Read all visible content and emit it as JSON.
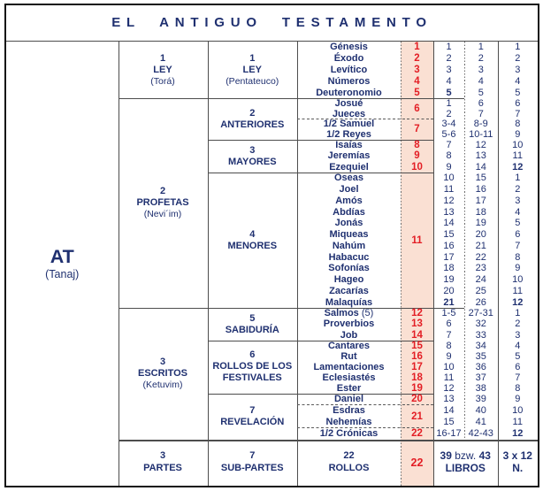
{
  "title": "EL  ANTIGUO  TESTAMENTO",
  "colors": {
    "navy": "#1f3070",
    "red": "#e31e25",
    "pink": "#fae0d3",
    "grid": "#4d4d4d",
    "border": "#141414"
  },
  "root": {
    "abbr": "AT",
    "sub": "(Tanaj)"
  },
  "parts": [
    {
      "num": "1",
      "name": "LEY",
      "sub": "(Torá)",
      "subparts": [
        {
          "num": "1",
          "name": "LEY",
          "sub": "(Pentateuco)",
          "groups": [
            {
              "scroll": "1",
              "books": [
                {
                  "name": "Génesis",
                  "n1": "1",
                  "n2": "1",
                  "n3": "1"
                }
              ]
            },
            {
              "scroll": "2",
              "books": [
                {
                  "name": "Éxodo",
                  "n1": "2",
                  "n2": "2",
                  "n3": "2"
                }
              ]
            },
            {
              "scroll": "3",
              "books": [
                {
                  "name": "Levítico",
                  "n1": "3",
                  "n2": "3",
                  "n3": "3"
                }
              ]
            },
            {
              "scroll": "4",
              "books": [
                {
                  "name": "Números",
                  "n1": "4",
                  "n2": "4",
                  "n3": "4"
                }
              ]
            },
            {
              "scroll": "5",
              "books": [
                {
                  "name": "Deuteronomio",
                  "n1": "5",
                  "n1b": true,
                  "n2": "5",
                  "n3": "5"
                }
              ]
            }
          ]
        }
      ]
    },
    {
      "num": "2",
      "name": "PROFETAS",
      "sub": "(Nevi´im)",
      "subparts": [
        {
          "num": "2",
          "name": "ANTERIORES",
          "groups": [
            {
              "scroll": "6",
              "books": [
                {
                  "name": "Josué",
                  "n1": "1",
                  "n2": "6",
                  "n3": "6"
                },
                {
                  "name": "Jueces",
                  "n1": "2",
                  "n2": "7",
                  "n3": "7"
                }
              ]
            },
            {
              "scroll": "7",
              "dash_before": true,
              "books": [
                {
                  "name": "1/2 Samuel",
                  "n1": "3-4",
                  "n2": "8-9",
                  "n3": "8"
                },
                {
                  "name": "1/2 Reyes",
                  "n1": "5-6",
                  "n2": "10-11",
                  "n3": "9"
                }
              ]
            }
          ]
        },
        {
          "num": "3",
          "name": "MAYORES",
          "groups": [
            {
              "scroll": "8",
              "books": [
                {
                  "name": "Isaías",
                  "n1": "7",
                  "n2": "12",
                  "n3": "10"
                }
              ]
            },
            {
              "scroll": "9",
              "books": [
                {
                  "name": "Jeremías",
                  "n1": "8",
                  "n2": "13",
                  "n3": "11"
                }
              ]
            },
            {
              "scroll": "10",
              "books": [
                {
                  "name": "Ezequiel",
                  "n1": "9",
                  "n2": "14",
                  "n3": "12",
                  "n3b": true
                }
              ]
            }
          ]
        },
        {
          "num": "4",
          "name": "MENORES",
          "groups": [
            {
              "scroll": "11",
              "books": [
                {
                  "name": "Oseas",
                  "n1": "10",
                  "n2": "15",
                  "n3": "1"
                },
                {
                  "name": "Joel",
                  "n1": "11",
                  "n2": "16",
                  "n3": "2"
                },
                {
                  "name": "Amós",
                  "n1": "12",
                  "n2": "17",
                  "n3": "3"
                },
                {
                  "name": "Abdías",
                  "n1": "13",
                  "n2": "18",
                  "n3": "4"
                },
                {
                  "name": "Jonás",
                  "n1": "14",
                  "n2": "19",
                  "n3": "5"
                },
                {
                  "name": "Miqueas",
                  "n1": "15",
                  "n2": "20",
                  "n3": "6"
                },
                {
                  "name": "Nahúm",
                  "n1": "16",
                  "n2": "21",
                  "n3": "7"
                },
                {
                  "name": "Habacuc",
                  "n1": "17",
                  "n2": "22",
                  "n3": "8"
                },
                {
                  "name": "Sofonías",
                  "n1": "18",
                  "n2": "23",
                  "n3": "9"
                },
                {
                  "name": "Hageo",
                  "n1": "19",
                  "n2": "24",
                  "n3": "10"
                },
                {
                  "name": "Zacarías",
                  "n1": "20",
                  "n2": "25",
                  "n3": "11"
                },
                {
                  "name": "Malaquías",
                  "n1": "21",
                  "n1b": true,
                  "n2": "26",
                  "n3": "12",
                  "n3b": true
                }
              ]
            }
          ]
        }
      ]
    },
    {
      "num": "3",
      "name": "ESCRITOS",
      "sub": "(Ketuvim)",
      "subparts": [
        {
          "num": "5",
          "name": "SABIDURÍA",
          "groups": [
            {
              "scroll": "12",
              "books": [
                {
                  "name": "Salmos",
                  "note": "(5)",
                  "n1": "1-5",
                  "n2": "27-31",
                  "n3": "1"
                }
              ]
            },
            {
              "scroll": "13",
              "books": [
                {
                  "name": "Proverbios",
                  "n1": "6",
                  "n2": "32",
                  "n3": "2"
                }
              ]
            },
            {
              "scroll": "14",
              "books": [
                {
                  "name": "Job",
                  "n1": "7",
                  "n2": "33",
                  "n3": "3"
                }
              ]
            }
          ]
        },
        {
          "num": "6",
          "name": "ROLLOS DE LOS|FESTIVALES",
          "groups": [
            {
              "scroll": "15",
              "books": [
                {
                  "name": "Cantares",
                  "n1": "8",
                  "n2": "34",
                  "n3": "4"
                }
              ]
            },
            {
              "scroll": "16",
              "books": [
                {
                  "name": "Rut",
                  "n1": "9",
                  "n2": "35",
                  "n3": "5"
                }
              ]
            },
            {
              "scroll": "17",
              "books": [
                {
                  "name": "Lamentaciones",
                  "n1": "10",
                  "n2": "36",
                  "n3": "6"
                }
              ]
            },
            {
              "scroll": "18",
              "books": [
                {
                  "name": "Eclesiastés",
                  "n1": "11",
                  "n2": "37",
                  "n3": "7"
                }
              ]
            },
            {
              "scroll": "19",
              "books": [
                {
                  "name": "Ester",
                  "n1": "12",
                  "n2": "38",
                  "n3": "8"
                }
              ]
            }
          ]
        },
        {
          "num": "7",
          "name": "REVELACIÓN",
          "groups": [
            {
              "scroll": "20",
              "books": [
                {
                  "name": "Daniel",
                  "n1": "13",
                  "n2": "39",
                  "n3": "9"
                }
              ]
            },
            {
              "scroll": "21",
              "dash_before": true,
              "books": [
                {
                  "name": "Esdras",
                  "n1": "14",
                  "n2": "40",
                  "n3": "10"
                },
                {
                  "name": "Nehemías",
                  "n1": "15",
                  "n2": "41",
                  "n3": "11"
                }
              ]
            },
            {
              "scroll": "22",
              "dash_before": true,
              "books": [
                {
                  "name": "1/2 Crónicas",
                  "n1": "16-17",
                  "n2": "42-43",
                  "n3": "12",
                  "n3b": true
                }
              ]
            }
          ]
        }
      ]
    }
  ],
  "summary": {
    "parts_num": "3",
    "parts_label": "PARTES",
    "subparts_num": "7",
    "subparts_label": "SUB-PARTES",
    "rolls_num": "22",
    "rolls_label": "ROLLOS",
    "scroll": "22",
    "books_line": "39 bzw. 43",
    "books_label": "LIBROS",
    "numbers_line": "3 x 12",
    "numbers_label": "N."
  }
}
